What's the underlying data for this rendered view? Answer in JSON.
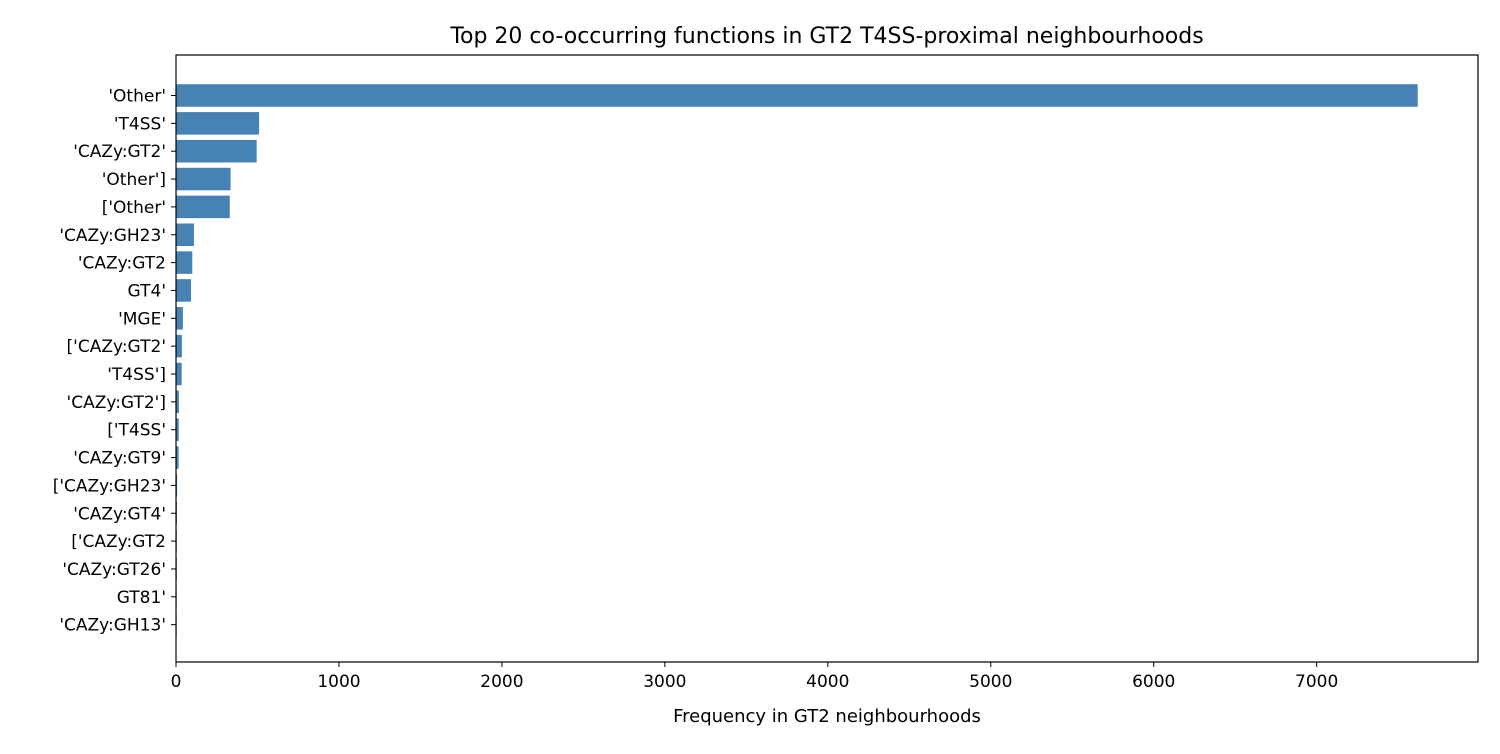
{
  "chart_data": {
    "type": "bar",
    "orientation": "horizontal",
    "title": "Top 20 co-occurring functions in GT2 T4SS-proximal neighbourhoods",
    "xlabel": "Frequency in GT2 neighbourhoods",
    "ylabel": "",
    "xlim": [
      0,
      7990
    ],
    "xticks": [
      0,
      1000,
      2000,
      3000,
      4000,
      5000,
      6000,
      7000
    ],
    "bar_color": "#4682b4",
    "grid": false,
    "categories": [
      "'Other'",
      "'T4SS'",
      "'CAZy:GT2'",
      "'Other']",
      "['Other'",
      "'CAZy:GH23'",
      "'CAZy:GT2",
      "GT4'",
      "'MGE'",
      "['CAZy:GT2'",
      "'T4SS']",
      "'CAZy:GT2']",
      "['T4SS'",
      "'CAZy:GT9'",
      "['CAZy:GH23'",
      "'CAZy:GT4'",
      "['CAZy:GT2",
      "'CAZy:GT26'",
      "GT81'",
      "'CAZy:GH13'"
    ],
    "values": [
      7620,
      510,
      495,
      335,
      330,
      110,
      100,
      92,
      42,
      36,
      35,
      18,
      17,
      16,
      7,
      6,
      5,
      5,
      4,
      4
    ]
  }
}
